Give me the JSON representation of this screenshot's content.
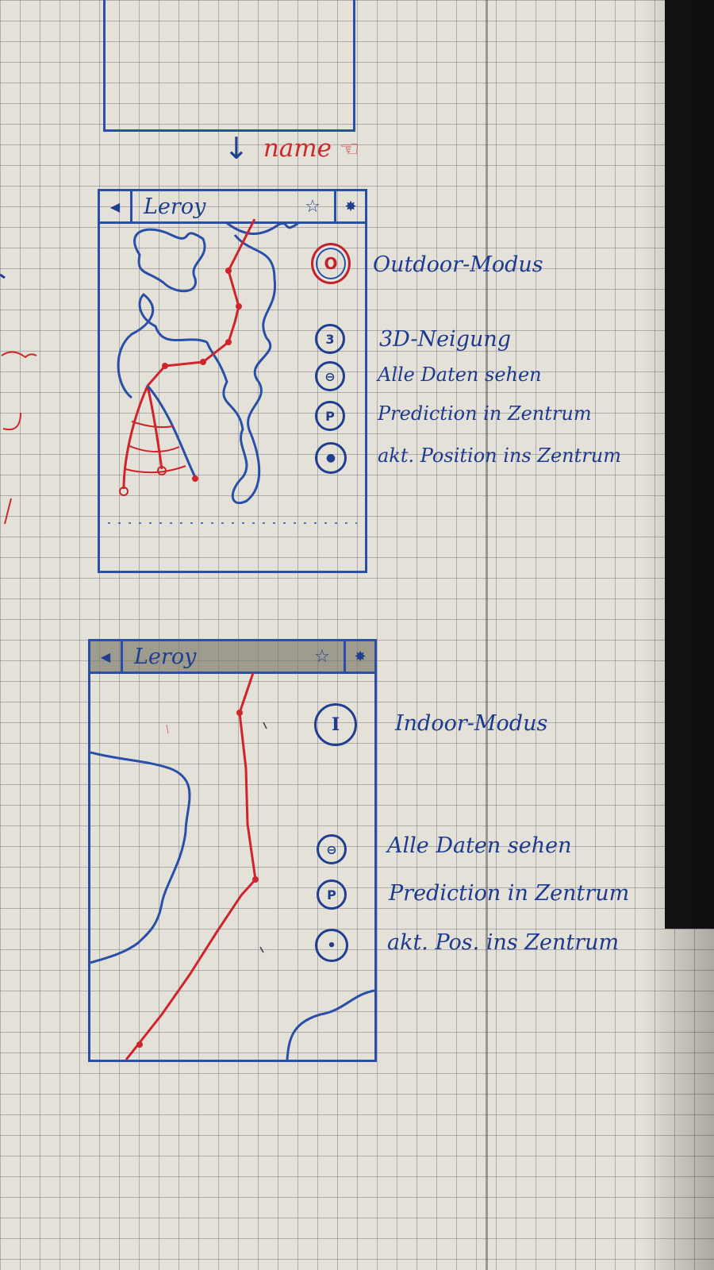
{
  "sketch": {
    "swipe_hint": {
      "label": "name",
      "arrow_icon": "down-arrow-icon",
      "gesture_icon": "pointing-hand-icon"
    },
    "colors": {
      "ink_blue": "#1f3e8f",
      "ink_red": "#cc2a2a",
      "paper": "#e4e1d8"
    }
  },
  "outdoor_screen": {
    "navbar": {
      "back_icon": "back-arrow-icon",
      "title": "Leroy",
      "favorite_icon": "star-icon",
      "settings_icon": "settings-icon"
    },
    "mode_button": {
      "label": "O",
      "annotation": "Outdoor-Modus"
    },
    "buttons": [
      {
        "label": "3",
        "annotation": "3D-Neigung"
      },
      {
        "label": "⊖",
        "annotation": "Alle Daten sehen"
      },
      {
        "label": "P",
        "annotation": "Prediction in Zentrum"
      },
      {
        "label": "●",
        "annotation": "akt. Position ins Zentrum"
      }
    ]
  },
  "indoor_screen": {
    "navbar": {
      "back_icon": "back-arrow-icon",
      "title": "Leroy",
      "favorite_icon": "star-icon",
      "settings_icon": "settings-icon"
    },
    "mode_button": {
      "label": "I",
      "annotation": "Indoor-Modus"
    },
    "buttons": [
      {
        "label": "⊖",
        "annotation": "Alle Daten sehen"
      },
      {
        "label": "P",
        "annotation": "Prediction in Zentrum"
      },
      {
        "label": "•",
        "annotation": "akt. Pos. ins Zentrum"
      }
    ]
  }
}
